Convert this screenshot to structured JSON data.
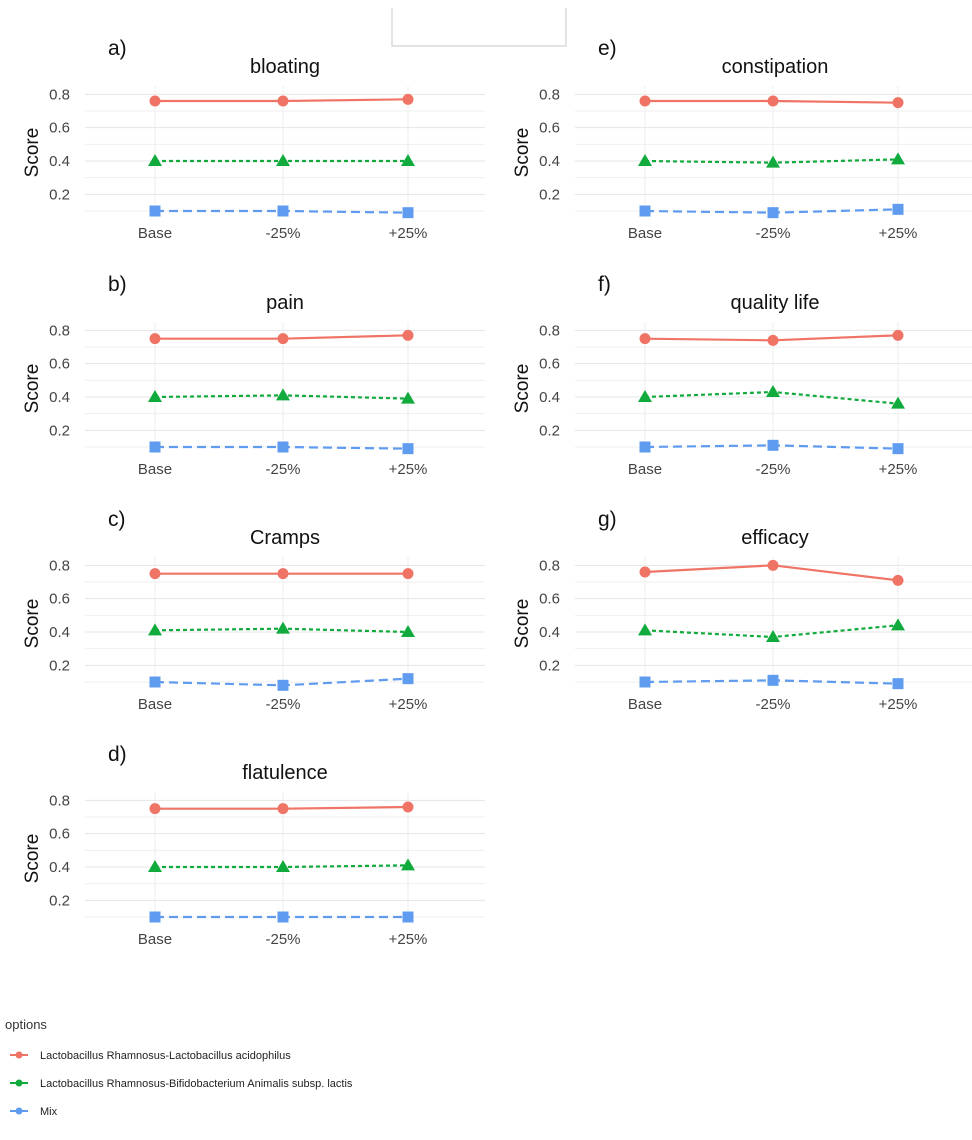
{
  "chart_data": [
    {
      "type": "line",
      "panel": "a)",
      "title": "bloating",
      "ylabel": "Score",
      "categories": [
        "Base",
        "-25%",
        "+25%"
      ],
      "ylim": [
        0.1,
        0.85
      ],
      "yticks": [
        0.2,
        0.4,
        0.6,
        0.8
      ],
      "series": [
        {
          "values": [
            0.76,
            0.76,
            0.77
          ]
        },
        {
          "values": [
            0.4,
            0.4,
            0.4
          ]
        },
        {
          "values": [
            0.1,
            0.1,
            0.09
          ]
        }
      ]
    },
    {
      "type": "line",
      "panel": "b)",
      "title": "pain",
      "ylabel": "Score",
      "categories": [
        "Base",
        "-25%",
        "+25%"
      ],
      "ylim": [
        0.1,
        0.85
      ],
      "yticks": [
        0.2,
        0.4,
        0.6,
        0.8
      ],
      "series": [
        {
          "values": [
            0.75,
            0.75,
            0.77
          ]
        },
        {
          "values": [
            0.4,
            0.41,
            0.39
          ]
        },
        {
          "values": [
            0.1,
            0.1,
            0.09
          ]
        }
      ]
    },
    {
      "type": "line",
      "panel": "c)",
      "title": "Cramps",
      "ylabel": "Score",
      "categories": [
        "Base",
        "-25%",
        "+25%"
      ],
      "ylim": [
        0.1,
        0.85
      ],
      "yticks": [
        0.2,
        0.4,
        0.6,
        0.8
      ],
      "series": [
        {
          "values": [
            0.75,
            0.75,
            0.75
          ]
        },
        {
          "values": [
            0.41,
            0.42,
            0.4
          ]
        },
        {
          "values": [
            0.1,
            0.08,
            0.12
          ]
        }
      ]
    },
    {
      "type": "line",
      "panel": "d)",
      "title": "flatulence",
      "ylabel": "Score",
      "categories": [
        "Base",
        "-25%",
        "+25%"
      ],
      "ylim": [
        0.1,
        0.85
      ],
      "yticks": [
        0.2,
        0.4,
        0.6,
        0.8
      ],
      "series": [
        {
          "values": [
            0.75,
            0.75,
            0.76
          ]
        },
        {
          "values": [
            0.4,
            0.4,
            0.41
          ]
        },
        {
          "values": [
            0.1,
            0.1,
            0.1
          ]
        }
      ]
    },
    {
      "type": "line",
      "panel": "e)",
      "title": "constipation",
      "ylabel": "Score",
      "categories": [
        "Base",
        "-25%",
        "+25%"
      ],
      "ylim": [
        0.1,
        0.85
      ],
      "yticks": [
        0.2,
        0.4,
        0.6,
        0.8
      ],
      "series": [
        {
          "values": [
            0.76,
            0.76,
            0.75
          ]
        },
        {
          "values": [
            0.4,
            0.39,
            0.41
          ]
        },
        {
          "values": [
            0.1,
            0.09,
            0.11
          ]
        }
      ]
    },
    {
      "type": "line",
      "panel": "f)",
      "title": "quality life",
      "ylabel": "Score",
      "categories": [
        "Base",
        "-25%",
        "+25%"
      ],
      "ylim": [
        0.1,
        0.85
      ],
      "yticks": [
        0.2,
        0.4,
        0.6,
        0.8
      ],
      "series": [
        {
          "values": [
            0.75,
            0.74,
            0.77
          ]
        },
        {
          "values": [
            0.4,
            0.43,
            0.36
          ]
        },
        {
          "values": [
            0.1,
            0.11,
            0.09
          ]
        }
      ]
    },
    {
      "type": "line",
      "panel": "g)",
      "title": "efficacy",
      "ylabel": "Score",
      "categories": [
        "Base",
        "-25%",
        "+25%"
      ],
      "ylim": [
        0.1,
        0.85
      ],
      "yticks": [
        0.2,
        0.4,
        0.6,
        0.8
      ],
      "series": [
        {
          "values": [
            0.76,
            0.8,
            0.71
          ]
        },
        {
          "values": [
            0.41,
            0.37,
            0.44
          ]
        },
        {
          "values": [
            0.1,
            0.11,
            0.09
          ]
        }
      ]
    }
  ],
  "legend": {
    "title": "options",
    "placement": "bottom-left",
    "items": [
      {
        "label": "Lactobacillus Rhamnosus-Lactobacillus acidophilus",
        "color": "#f07466",
        "marker": "circle",
        "line": "solid"
      },
      {
        "label": "Lactobacillus Rhamnosus-Bifidobacterium Animalis subsp. lactis",
        "color": "#10ab3c",
        "marker": "triangle",
        "line": "dotted"
      },
      {
        "label": "Mix",
        "color": "#5f9cf0",
        "marker": "square",
        "line": "dashed"
      }
    ]
  },
  "grid": true
}
